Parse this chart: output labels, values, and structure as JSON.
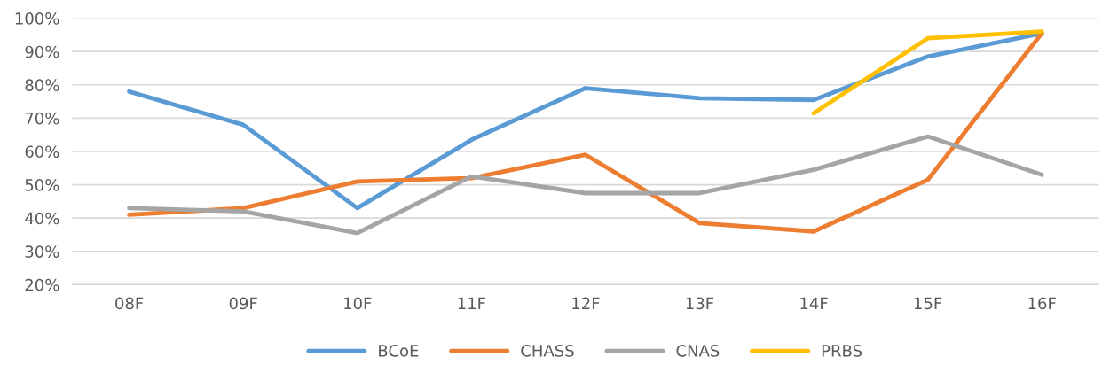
{
  "chart_data": {
    "type": "line",
    "categories": [
      "08F",
      "09F",
      "10F",
      "11F",
      "12F",
      "13F",
      "14F",
      "15F",
      "16F"
    ],
    "series": [
      {
        "name": "BCoE",
        "color": "#5b9bd5",
        "values": [
          78,
          68,
          43,
          63.5,
          79,
          76,
          75.5,
          88.5,
          95.5
        ]
      },
      {
        "name": "CHASS",
        "color": "#ed7d31",
        "values": [
          41,
          43,
          51,
          52,
          59,
          38.5,
          36,
          51.5,
          95.5
        ]
      },
      {
        "name": "CNAS",
        "color": "#a5a5a5",
        "values": [
          43,
          42,
          35.5,
          52.5,
          47.5,
          47.5,
          54.5,
          64.5,
          53
        ]
      },
      {
        "name": "PRBS",
        "color": "#ffc000",
        "values": [
          null,
          null,
          null,
          null,
          null,
          null,
          71.5,
          94,
          96
        ]
      }
    ],
    "ylim": [
      20,
      100
    ],
    "yticks": [
      {
        "value": 20,
        "label": "20%"
      },
      {
        "value": 30,
        "label": "30%"
      },
      {
        "value": 40,
        "label": "40%"
      },
      {
        "value": 50,
        "label": "50%"
      },
      {
        "value": 60,
        "label": "60%"
      },
      {
        "value": 70,
        "label": "70%"
      },
      {
        "value": 80,
        "label": "80%"
      },
      {
        "value": 90,
        "label": "90%"
      },
      {
        "value": 100,
        "label": "100%"
      }
    ],
    "grid": "y",
    "legend": "bottom",
    "marker": "none",
    "line_style": "solid"
  }
}
